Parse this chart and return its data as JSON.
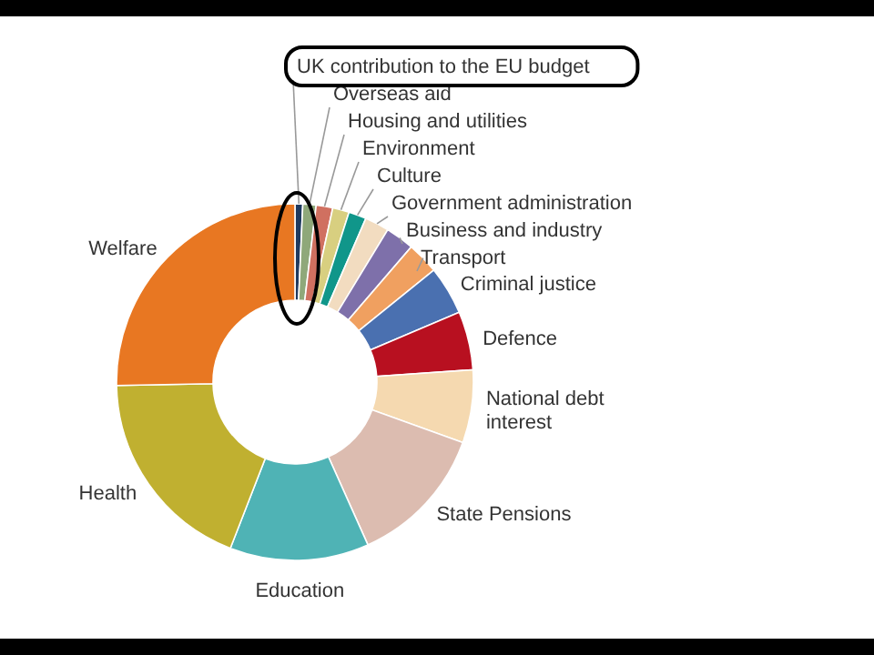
{
  "chart_data": {
    "type": "donut",
    "categories": [
      "UK contribution to the EU budget",
      "Overseas aid",
      "Housing and utilities",
      "Environment",
      "Culture",
      "Government administration",
      "Business and industry",
      "Transport",
      "Criminal justice",
      "Defence",
      "National debt interest",
      "State Pensions",
      "Education",
      "Health",
      "Welfare"
    ],
    "values": [
      0.7,
      1.2,
      1.5,
      1.5,
      1.6,
      2.2,
      2.6,
      2.9,
      4.4,
      5.3,
      6.6,
      12.8,
      12.6,
      18.8,
      25.3
    ],
    "colors": [
      "#1f3a5f",
      "#8fa87a",
      "#d07060",
      "#d8cf80",
      "#10968a",
      "#f2dcc0",
      "#7e70aa",
      "#f0a060",
      "#4a70b0",
      "#b81020",
      "#f5d9b0",
      "#dcbcb0",
      "#4fb3b5",
      "#c0b030",
      "#e87722"
    ]
  }
}
